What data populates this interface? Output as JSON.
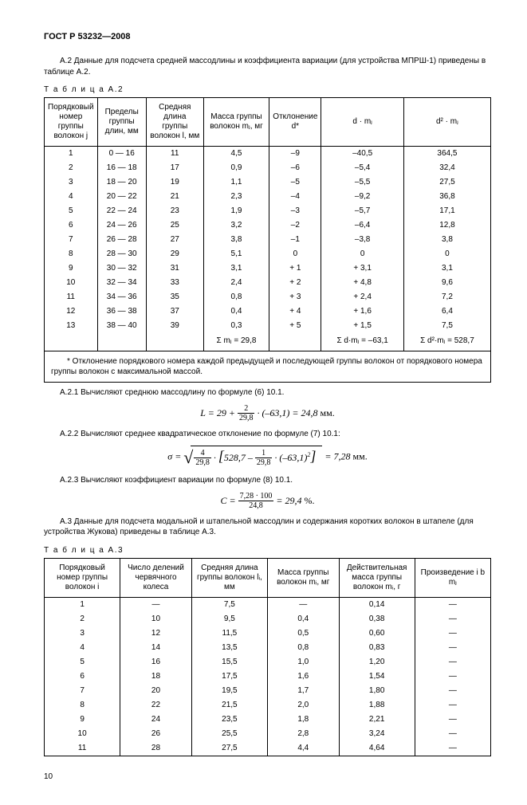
{
  "doc_title": "ГОСТ Р 53232—2008",
  "para_a2": "А.2  Данные для подсчета средней массодлины и коэффициента вариации (для устройства МПРШ-1) приведены в таблице А.2.",
  "table_a2": {
    "caption": "Т а б л и ц а   А.2",
    "headers": [
      "Порядковый номер группы волокон j",
      "Пределы группы длин, мм",
      "Средняя длина группы волокон l, мм",
      "Масса группы волокон mⱼ, мг",
      "Отклонение d*",
      "d · mⱼ",
      "d² · mⱼ"
    ],
    "rows": [
      [
        "1",
        "0 — 16",
        "11",
        "4,5",
        "–9",
        "–40,5",
        "364,5"
      ],
      [
        "2",
        "16 — 18",
        "17",
        "0,9",
        "–6",
        "–5,4",
        "32,4"
      ],
      [
        "3",
        "18 — 20",
        "19",
        "1,1",
        "–5",
        "–5,5",
        "27,5"
      ],
      [
        "4",
        "20 — 22",
        "21",
        "2,3",
        "–4",
        "–9,2",
        "36,8"
      ],
      [
        "5",
        "22 — 24",
        "23",
        "1,9",
        "–3",
        "–5,7",
        "17,1"
      ],
      [
        "6",
        "24 — 26",
        "25",
        "3,2",
        "–2",
        "–6,4",
        "12,8"
      ],
      [
        "7",
        "26 — 28",
        "27",
        "3,8",
        "–1",
        "–3,8",
        "3,8"
      ],
      [
        "8",
        "28 — 30",
        "29",
        "5,1",
        "0",
        "0",
        "0"
      ],
      [
        "9",
        "30 — 32",
        "31",
        "3,1",
        "+ 1",
        "+ 3,1",
        "3,1"
      ],
      [
        "10",
        "32 — 34",
        "33",
        "2,4",
        "+ 2",
        "+ 4,8",
        "9,6"
      ],
      [
        "11",
        "34 — 36",
        "35",
        "0,8",
        "+ 3",
        "+ 2,4",
        "7,2"
      ],
      [
        "12",
        "36 — 38",
        "37",
        "0,4",
        "+ 4",
        "+ 1,6",
        "6,4"
      ],
      [
        "13",
        "38 — 40",
        "39",
        "0,3",
        "+ 5",
        "+ 1,5",
        "7,5"
      ]
    ],
    "sums": [
      "Σ mⱼ = 29,8",
      "Σ d·mⱼ = –63,1",
      "Σ d²·mⱼ = 528,7"
    ],
    "footnote": "* Отклонение порядкового номера каждой предыдущей и последующей группы волокон от порядкового номера группы волокон с максимальной массой."
  },
  "para_a21": "А.2.1  Вычисляют среднюю массодлину по формуле (6) 10.1.",
  "formula_a21": "L = 29 + (2 / 29,8) · (–63,1) = 24,8 мм.",
  "para_a22": "А.2.2  Вычисляют среднее квадратическое отклонение по формуле (7) 10.1:",
  "formula_a22": "σ = √(4/29,8 · [528,7 – (1/29,8)·(–63,1)²]) = 7,28 мм.",
  "para_a23": "А.2.3  Вычисляют коэффициент вариации по формуле (8) 10.1.",
  "formula_a23": "C = (7,28·100 / 24,8) = 29,4 %.",
  "para_a3": "А.3  Данные для подсчета модальной и штапельной массодлин и содержания коротких волокон в штапеле (для устройства Жукова) приведены в таблице А.3.",
  "table_a3": {
    "caption": "Т а б л и ц а   А.3",
    "headers": [
      "Порядковый номер группы волокон i",
      "Число делений червячного колеса",
      "Средняя длина группы волокон lᵢ, мм",
      "Масса группы волокон mᵢ, мг",
      "Действительная масса группы волокон mᵢ, г",
      "Произведение i b mⱼ"
    ],
    "rows": [
      [
        "1",
        "—",
        "7,5",
        "—",
        "0,14",
        "—"
      ],
      [
        "2",
        "10",
        "9,5",
        "0,4",
        "0,38",
        "—"
      ],
      [
        "3",
        "12",
        "11,5",
        "0,5",
        "0,60",
        "—"
      ],
      [
        "4",
        "14",
        "13,5",
        "0,8",
        "0,83",
        "—"
      ],
      [
        "5",
        "16",
        "15,5",
        "1,0",
        "1,20",
        "—"
      ],
      [
        "6",
        "18",
        "17,5",
        "1,6",
        "1,54",
        "—"
      ],
      [
        "7",
        "20",
        "19,5",
        "1,7",
        "1,80",
        "—"
      ],
      [
        "8",
        "22",
        "21,5",
        "2,0",
        "1,88",
        "—"
      ],
      [
        "9",
        "24",
        "23,5",
        "1,8",
        "2,21",
        "—"
      ],
      [
        "10",
        "26",
        "25,5",
        "2,8",
        "3,24",
        "—"
      ],
      [
        "11",
        "28",
        "27,5",
        "4,4",
        "4,64",
        "—"
      ]
    ]
  },
  "pagenum": "10"
}
